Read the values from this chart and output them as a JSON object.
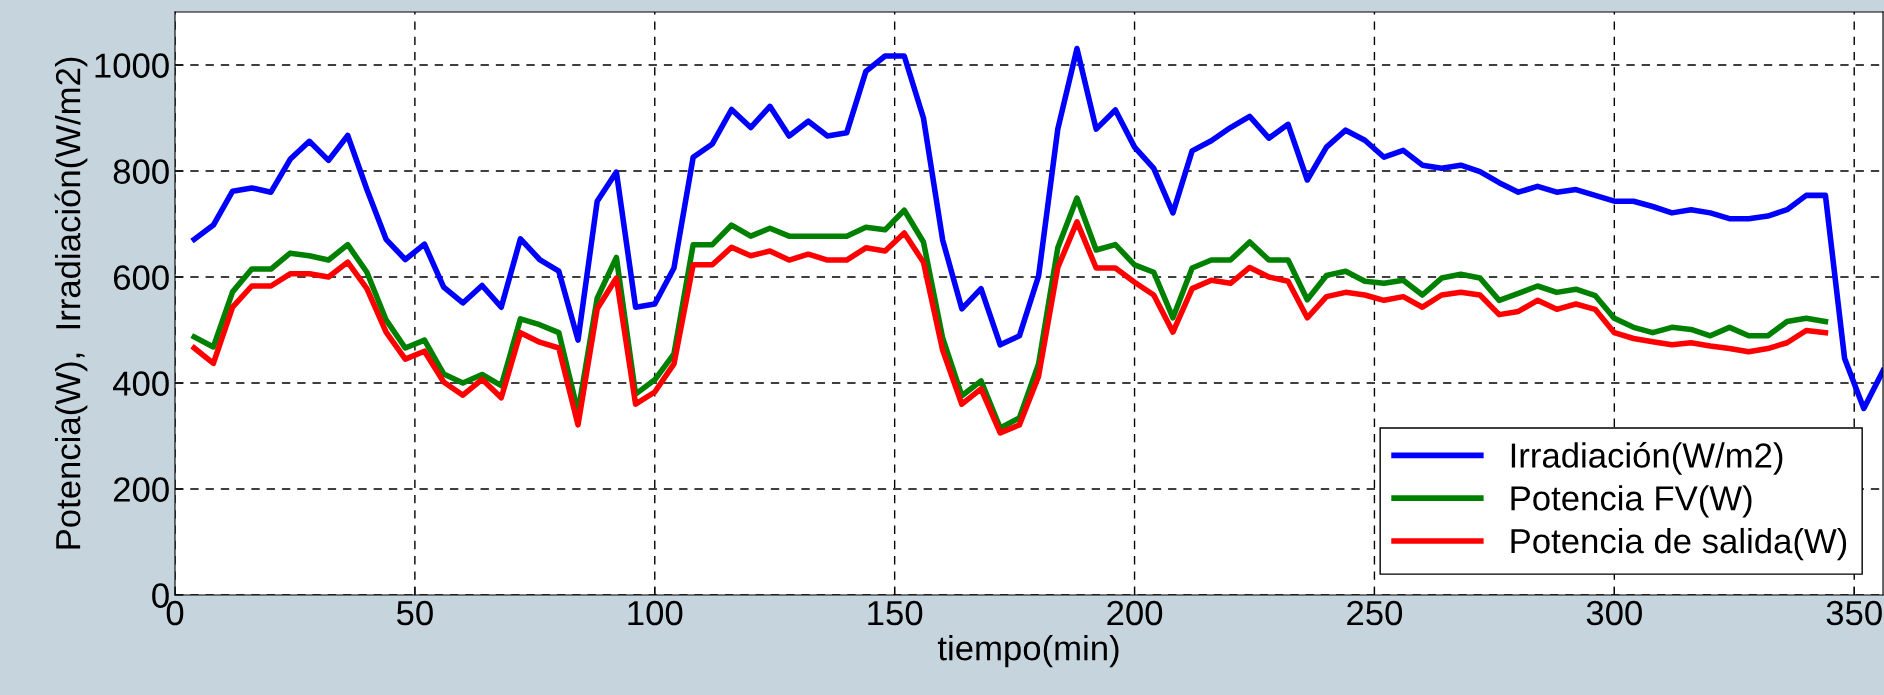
{
  "chart_data": {
    "type": "line",
    "xlabel": "tiempo(min)",
    "ylabel": "Potencia(W),  Irradiación(W/m2)",
    "x": [
      4,
      8,
      12,
      16,
      20,
      24,
      28,
      32,
      36,
      40,
      44,
      48,
      52,
      56,
      60,
      64,
      68,
      72,
      76,
      80,
      84,
      88,
      92,
      96,
      100,
      104,
      108,
      112,
      116,
      120,
      124,
      128,
      132,
      136,
      140,
      144,
      148,
      152,
      156,
      160,
      164,
      168,
      172,
      176,
      180,
      184,
      188,
      192,
      196,
      200,
      204,
      208,
      212,
      216,
      220,
      224,
      228,
      232,
      236,
      240,
      244,
      248,
      252,
      256,
      260,
      264,
      268,
      272,
      276,
      280,
      284,
      288,
      292,
      296,
      300,
      304,
      308,
      312,
      316,
      320,
      324,
      328,
      332,
      336,
      340,
      344,
      348,
      352,
      356
    ],
    "series": [
      {
        "name": "Irradiación(W/m2)",
        "color": "#0000ff",
        "values": [
          671,
          698,
          762,
          768,
          760,
          822,
          856,
          820,
          867,
          765,
          671,
          633,
          662,
          581,
          551,
          584,
          543,
          672,
          633,
          611,
          481,
          743,
          798,
          543,
          549,
          617,
          826,
          851,
          916,
          882,
          922,
          866,
          894,
          866,
          872,
          988,
          1017,
          1017,
          900,
          670,
          540,
          578,
          472,
          489,
          602,
          879,
          1031,
          879,
          915,
          845,
          805,
          721,
          838,
          857,
          882,
          903,
          862,
          888,
          783,
          845,
          877,
          858,
          826,
          839,
          811,
          805,
          811,
          799,
          778,
          760,
          771,
          760,
          765,
          754,
          743,
          743,
          733,
          721,
          727,
          721,
          710,
          710,
          715,
          727,
          754,
          754,
          446,
          352,
          423
        ]
      },
      {
        "name": "Potencia FV(W)",
        "color": "#008000",
        "values": [
          487,
          468,
          572,
          615,
          615,
          645,
          640,
          632,
          661,
          609,
          519,
          466,
          481,
          417,
          400,
          416,
          395,
          521,
          510,
          495,
          345,
          560,
          637,
          379,
          406,
          455,
          661,
          661,
          698,
          677,
          692,
          677,
          677,
          677,
          677,
          694,
          689,
          726,
          666,
          485,
          376,
          404,
          315,
          334,
          436,
          655,
          749,
          651,
          661,
          623,
          609,
          523,
          617,
          632,
          632,
          666,
          632,
          632,
          557,
          603,
          611,
          592,
          588,
          594,
          566,
          598,
          605,
          598,
          556,
          569,
          583,
          571,
          577,
          565,
          522,
          505,
          495,
          505,
          501,
          489,
          505,
          489,
          489,
          516,
          522,
          516,
          null,
          null,
          null
        ]
      },
      {
        "name": "Potencia de salida(W)",
        "color": "#ff0000",
        "values": [
          466,
          437,
          543,
          583,
          583,
          606,
          606,
          600,
          628,
          578,
          496,
          445,
          460,
          402,
          377,
          407,
          372,
          495,
          477,
          466,
          321,
          540,
          598,
          360,
          383,
          436,
          623,
          623,
          656,
          640,
          649,
          632,
          643,
          632,
          632,
          655,
          649,
          683,
          628,
          462,
          360,
          389,
          306,
          321,
          413,
          618,
          704,
          617,
          617,
          590,
          566,
          496,
          578,
          594,
          588,
          618,
          600,
          592,
          523,
          563,
          571,
          566,
          556,
          563,
          543,
          566,
          571,
          566,
          529,
          535,
          556,
          539,
          549,
          539,
          495,
          484,
          478,
          472,
          476,
          470,
          465,
          459,
          465,
          476,
          499,
          495,
          null,
          null,
          null
        ]
      }
    ],
    "xlim": [
      0,
      356
    ],
    "xticks": [
      0,
      50,
      100,
      150,
      200,
      250,
      300,
      350
    ],
    "ylim": [
      0,
      1100
    ],
    "yticks": [
      0,
      200,
      400,
      600,
      800,
      1000
    ],
    "grid": true,
    "legend": "bottom right",
    "line_style": "solid"
  }
}
